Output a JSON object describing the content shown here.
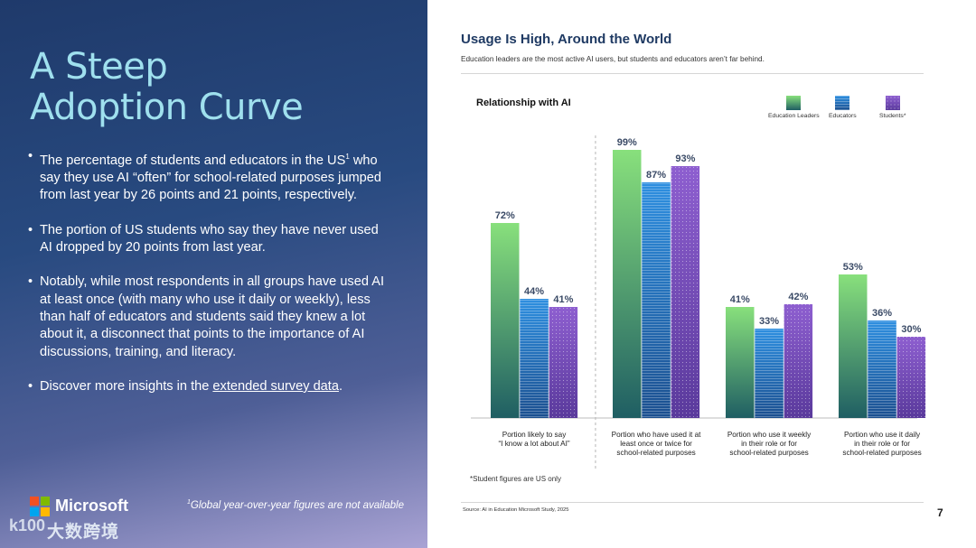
{
  "left": {
    "title_line1": "A Steep",
    "title_line2": "Adoption Curve",
    "bullets": [
      {
        "pre": "The percentage of students and educators in the US",
        "sup": "1",
        "post": " who say they use AI “often” for school-related purposes jumped from last year by 26 points and 21 points, respectively."
      },
      {
        "text": "The portion of US students who say they have never used AI dropped by 20 points from last year."
      },
      {
        "text": "Notably, while most respondents in all groups have used AI at least once (with many who use it daily or weekly), less than half of educators and students said they knew a lot about it, a disconnect that points to the importance of AI discussions, training, and literacy."
      },
      {
        "pre": "Discover more insights in the ",
        "link": "extended survey data",
        "post": "."
      }
    ],
    "brand": "Microsoft",
    "footnote_sup": "1",
    "footnote": "Global year-over-year figures are not available",
    "watermark_icon": "k100",
    "watermark_text": "大数跨境"
  },
  "right": {
    "title": "Usage Is High, Around the World",
    "subtitle": "Education leaders are the most active AI users, but students and educators aren’t far behind.",
    "note": "*Student figures are US only",
    "source": "Source: AI in Education Microsoft Study, 2025",
    "page_number": "7"
  },
  "colors": {
    "leaders_top": "#88e07c",
    "leaders_bottom": "#1f5e63",
    "educators_top": "#2e8fe0",
    "educators_bottom": "#1b4f8f",
    "students_top": "#8e5fd0",
    "students_bottom": "#5a3a9c"
  },
  "chart_data": {
    "type": "bar",
    "title": "Relationship with AI",
    "categories": [
      [
        "Portion likely to say",
        "“I know a lot about AI”"
      ],
      [
        "Portion who have used it at",
        "least once or twice for",
        "school-related purposes"
      ],
      [
        "Portion who use it weekly",
        "in their role or for",
        "school-related purposes"
      ],
      [
        "Portion who use it daily",
        "in their role or for",
        "school-related purposes"
      ]
    ],
    "series": [
      {
        "name": "Education Leaders",
        "values": [
          72,
          99,
          41,
          53
        ]
      },
      {
        "name": "Educators",
        "values": [
          44,
          87,
          33,
          36
        ]
      },
      {
        "name": "Students*",
        "values": [
          41,
          93,
          42,
          30
        ]
      }
    ],
    "value_suffix": "%",
    "ylim": [
      0,
      100
    ],
    "grid": false,
    "legend": "top-right",
    "divider_after_category": 1
  }
}
